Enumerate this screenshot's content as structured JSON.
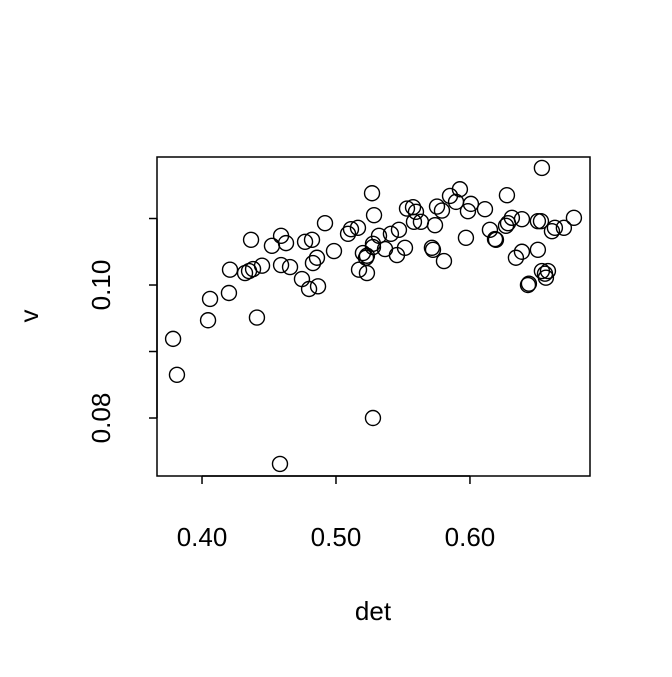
{
  "chart_data": {
    "type": "scatter",
    "x_label": "det",
    "y_label": "v",
    "x": [
      0.3784,
      0.3813,
      0.4045,
      0.406,
      0.4201,
      0.4209,
      0.4321,
      0.4351,
      0.4366,
      0.4381,
      0.441,
      0.4448,
      0.4522,
      0.459,
      0.459,
      0.4627,
      0.4657,
      0.4746,
      0.4769,
      0.4799,
      0.4821,
      0.4828,
      0.4858,
      0.4866,
      0.4918,
      0.4985,
      0.509,
      0.5112,
      0.5164,
      0.5172,
      0.5201,
      0.5224,
      0.5231,
      0.5231,
      0.5269,
      0.5276,
      0.5276,
      0.5284,
      0.5321,
      0.5366,
      0.541,
      0.5455,
      0.547,
      0.5515,
      0.553,
      0.5575,
      0.5582,
      0.5597,
      0.5634,
      0.5724,
      0.5716,
      0.5739,
      0.5754,
      0.5791,
      0.5806,
      0.5851,
      0.5896,
      0.5925,
      0.597,
      0.5985,
      0.6007,
      0.6112,
      0.6149,
      0.6187,
      0.6194,
      0.6269,
      0.6276,
      0.6284,
      0.6313,
      0.6343,
      0.6388,
      0.6388,
      0.6433,
      0.644,
      0.6507,
      0.6507,
      0.6537,
      0.653,
      0.6537,
      0.656,
      0.6567,
      0.6582,
      0.6612,
      0.6634,
      0.6701,
      0.6776,
      0.4582,
      0.5276
    ],
    "y": [
      0.0919,
      0.0865,
      0.0947,
      0.0979,
      0.0988,
      0.1023,
      0.1018,
      0.1021,
      0.1068,
      0.1024,
      0.0951,
      0.1029,
      0.1059,
      0.1074,
      0.103,
      0.1063,
      0.1027,
      0.1009,
      0.1065,
      0.0994,
      0.1068,
      0.1033,
      0.1041,
      0.0998,
      0.1093,
      0.1051,
      0.1077,
      0.1084,
      0.1086,
      0.1023,
      0.1048,
      0.1041,
      0.1018,
      0.1044,
      0.1138,
      0.1062,
      0.1057,
      0.1105,
      0.1074,
      0.1054,
      0.1077,
      0.1045,
      0.1083,
      0.1056,
      0.1115,
      0.1117,
      0.1095,
      0.111,
      0.1095,
      0.1053,
      0.1056,
      0.109,
      0.1118,
      0.1112,
      0.1036,
      0.1134,
      0.1125,
      0.1144,
      0.1071,
      0.1111,
      0.1122,
      0.1114,
      0.1083,
      0.1069,
      0.1068,
      0.1089,
      0.1135,
      0.1093,
      0.1101,
      0.1041,
      0.1099,
      0.105,
      0.1,
      0.1002,
      0.1053,
      0.1096,
      0.1176,
      0.1096,
      0.1021,
      0.1017,
      0.1011,
      0.1021,
      0.1081,
      0.1086,
      0.1086,
      0.1101,
      0.0731,
      0.08
    ],
    "color": "#000000",
    "xlim": [
      0.3664,
      0.6896
    ],
    "ylim": [
      0.07128,
      0.11925
    ],
    "xticks": [
      {
        "value": 0.4,
        "label": "0.40"
      },
      {
        "value": 0.5,
        "label": "0.50"
      },
      {
        "value": 0.6,
        "label": "0.60"
      }
    ],
    "yticks": [
      {
        "value": 0.08,
        "label": "0.08"
      },
      {
        "value": 0.1,
        "label": "0.10"
      }
    ],
    "yticks_unlabeled": [
      0.09,
      0.11
    ],
    "grid": false
  }
}
